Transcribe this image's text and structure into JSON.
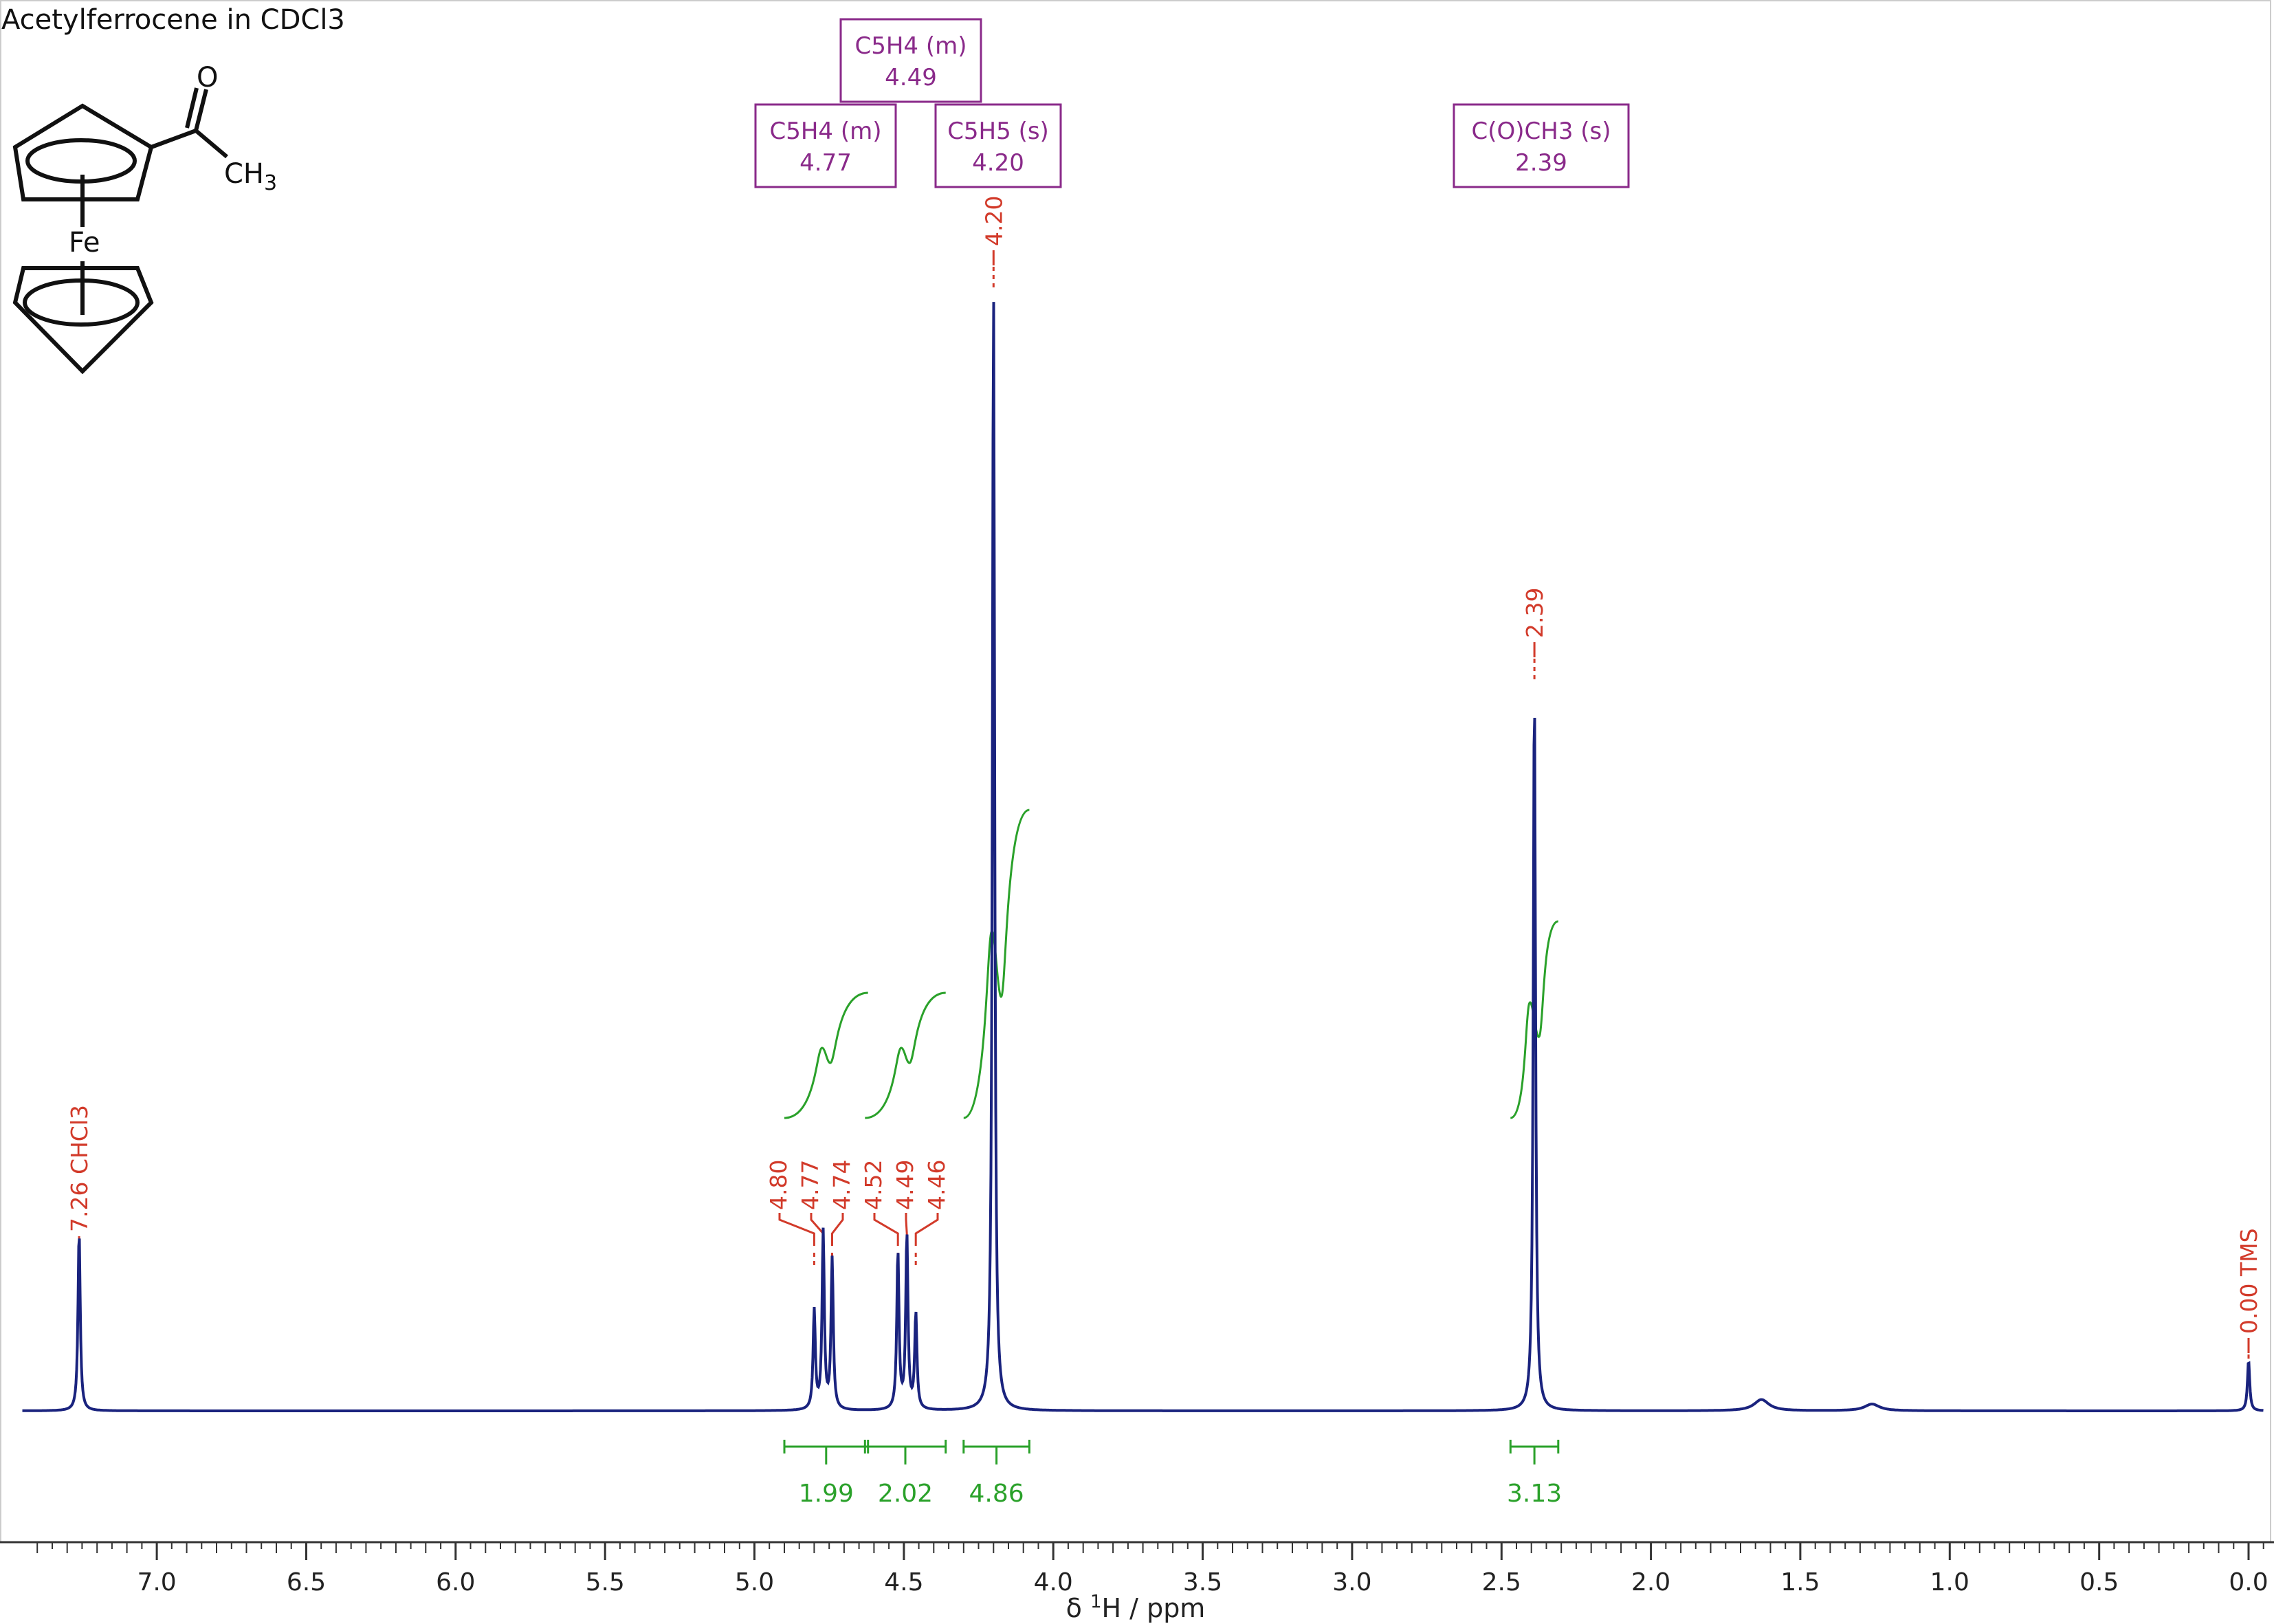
{
  "chart_data": {
    "type": "line",
    "title": "Acetylferrocene in CDCl3",
    "xlabel_prefix": "δ ",
    "xlabel_sup": "1",
    "xlabel_suffix": "H / ppm",
    "xlim": [
      7.45,
      -0.05
    ],
    "x_ticks": [
      "7.0",
      "6.5",
      "6.0",
      "5.5",
      "5.0",
      "4.5",
      "4.0",
      "3.5",
      "3.0",
      "2.5",
      "2.0",
      "1.5",
      "1.0",
      "0.5",
      "0.0"
    ],
    "spectrum_color": "#1a237e",
    "peak_label_color": "#d23a2a",
    "integral_color": "#2aa12a",
    "multiplet_box_color": "#8a2a8a",
    "peaks": [
      {
        "ppm": 7.26,
        "height": 0.16
      },
      {
        "ppm": 4.8,
        "height": 0.088
      },
      {
        "ppm": 4.77,
        "height": 0.158
      },
      {
        "ppm": 4.74,
        "height": 0.134
      },
      {
        "ppm": 4.52,
        "height": 0.14
      },
      {
        "ppm": 4.49,
        "height": 0.155
      },
      {
        "ppm": 4.46,
        "height": 0.085
      },
      {
        "ppm": 4.2,
        "height": 1.0
      },
      {
        "ppm": 2.39,
        "height": 0.645
      },
      {
        "ppm": 0.0,
        "height": 0.045
      },
      {
        "ppm": 1.63,
        "height": 0.01
      },
      {
        "ppm": 1.26,
        "height": 0.006
      }
    ],
    "peak_labels": [
      {
        "text": "7.26 CHCl3",
        "ppm": 7.26
      },
      {
        "text": "4.80",
        "ppm": 4.8
      },
      {
        "text": "4.77",
        "ppm": 4.77
      },
      {
        "text": "4.74",
        "ppm": 4.74
      },
      {
        "text": "4.52",
        "ppm": 4.52
      },
      {
        "text": "4.49",
        "ppm": 4.49
      },
      {
        "text": "4.46",
        "ppm": 4.46
      },
      {
        "text": "4.20",
        "ppm": 4.2
      },
      {
        "text": "2.39",
        "ppm": 2.39
      },
      {
        "text": "0.00 TMS",
        "ppm": 0.0
      }
    ],
    "integrals": [
      {
        "from": 4.9,
        "to": 4.62,
        "value": "1.99"
      },
      {
        "from": 4.63,
        "to": 4.36,
        "value": "2.02"
      },
      {
        "from": 4.3,
        "to": 4.08,
        "value": "4.86"
      },
      {
        "from": 2.47,
        "to": 2.31,
        "value": "3.13"
      }
    ],
    "multiplets": [
      {
        "name": "C5H4 (m)",
        "shift": "4.77",
        "ppm": 4.77,
        "row": 2
      },
      {
        "name": "C5H4 (m)",
        "shift": "4.49",
        "ppm": 4.49,
        "row": 1
      },
      {
        "name": "C5H5 (s)",
        "shift": "4.20",
        "ppm": 4.2,
        "row": 2
      },
      {
        "name": "C(O)CH3 (s)",
        "shift": "2.39",
        "ppm": 2.39,
        "row": 2
      }
    ]
  },
  "structure": {
    "oxygen": "O",
    "methyl": "CH",
    "methyl_sub": "3",
    "iron": "Fe"
  }
}
